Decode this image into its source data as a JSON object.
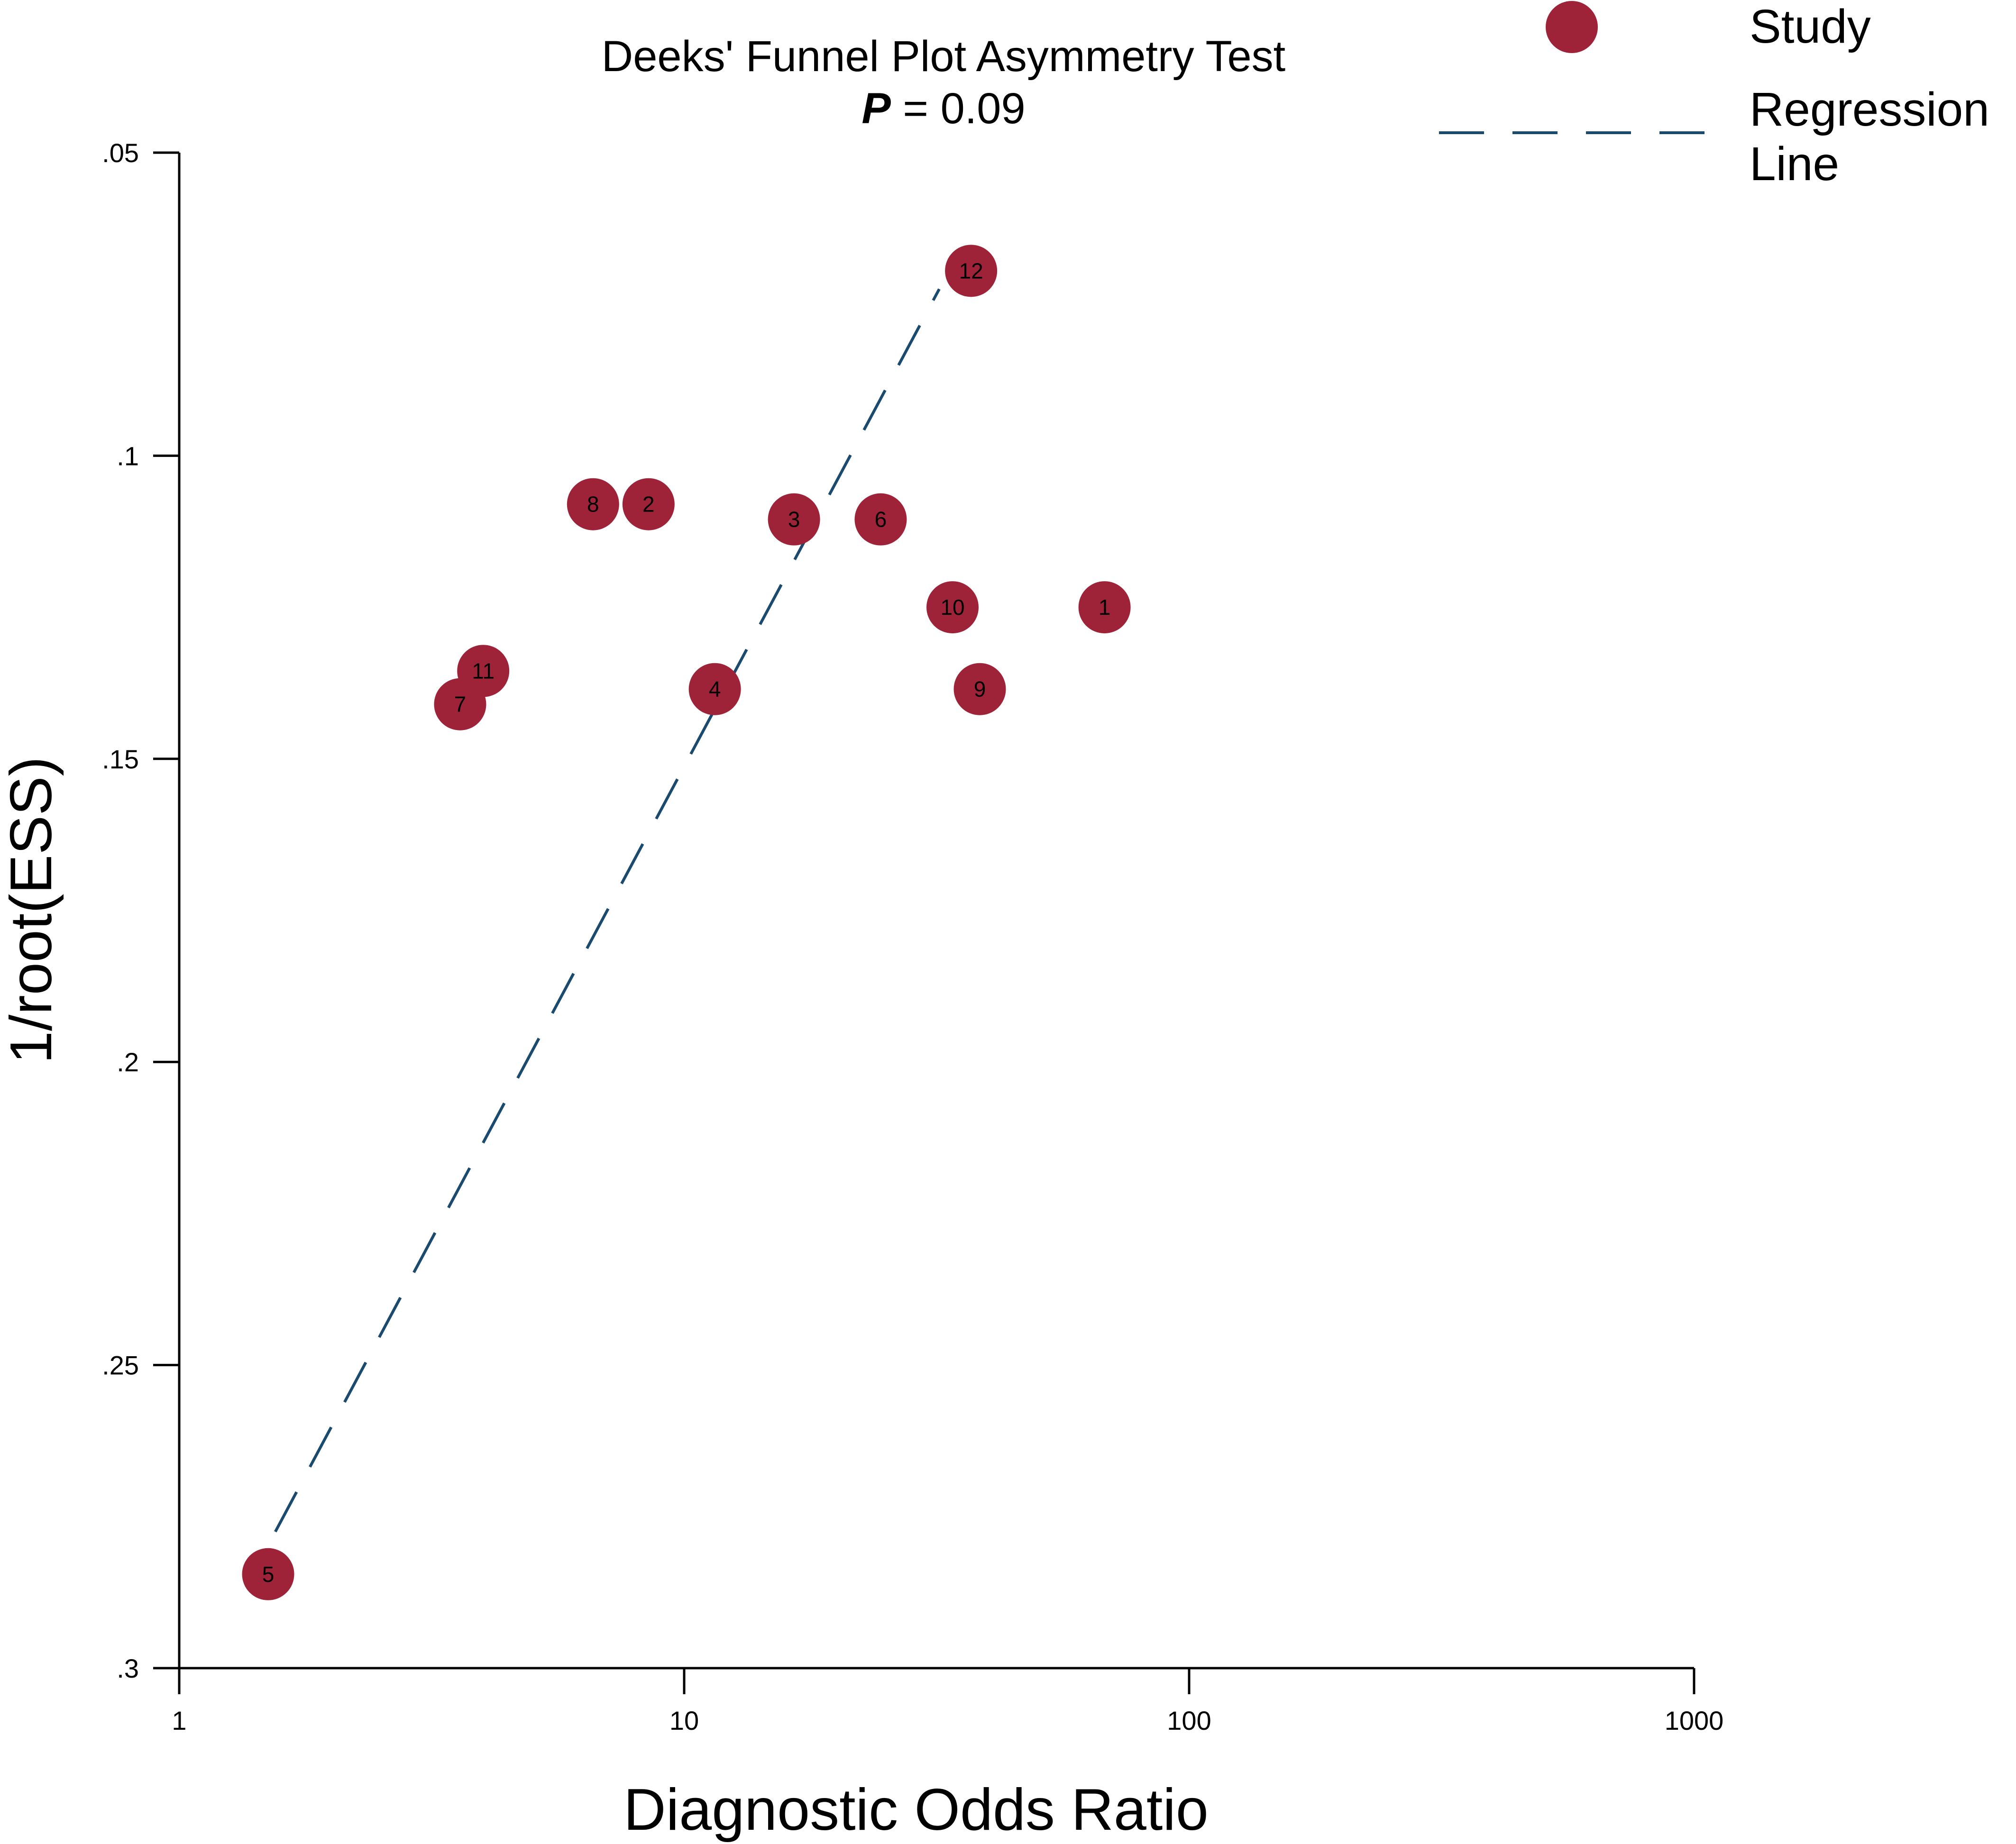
{
  "chart_data": {
    "type": "scatter",
    "title": "Deeks' Funnel Plot Asymmetry Test",
    "subtitle": {
      "p_label": "P",
      "rest": " = 0.09"
    },
    "xlabel": "Diagnostic Odds Ratio",
    "ylabel": "1/root(ESS)",
    "x_scale": "log",
    "xlim": [
      1,
      1000
    ],
    "ylim": [
      0.3,
      0.05
    ],
    "y_inverted": true,
    "x_ticks": [
      1,
      10,
      100,
      1000
    ],
    "x_tick_labels": [
      "1",
      "10",
      "100",
      "1000"
    ],
    "y_ticks": [
      0.05,
      0.1,
      0.15,
      0.2,
      0.25,
      0.3
    ],
    "y_tick_labels": [
      ".05",
      ".1",
      ".15",
      ".2",
      ".25",
      ".3"
    ],
    "grid": false,
    "legend": {
      "placement": "top-right",
      "items": [
        {
          "label": "Study",
          "kind": "marker"
        },
        {
          "label": "Regression\nLine",
          "kind": "dashed-line"
        }
      ]
    },
    "series": [
      {
        "name": "Study",
        "points": [
          {
            "label": "1",
            "x": 68,
            "y": 0.125
          },
          {
            "label": "2",
            "x": 8.5,
            "y": 0.108
          },
          {
            "label": "3",
            "x": 16.5,
            "y": 0.1105
          },
          {
            "label": "4",
            "x": 11.5,
            "y": 0.1385
          },
          {
            "label": "5",
            "x": 1.5,
            "y": 0.2845
          },
          {
            "label": "6",
            "x": 24.5,
            "y": 0.1105
          },
          {
            "label": "7",
            "x": 3.6,
            "y": 0.141
          },
          {
            "label": "8",
            "x": 6.6,
            "y": 0.108
          },
          {
            "label": "9",
            "x": 38.5,
            "y": 0.1385
          },
          {
            "label": "10",
            "x": 34,
            "y": 0.125
          },
          {
            "label": "11",
            "x": 4,
            "y": 0.1355
          },
          {
            "label": "12",
            "x": 37,
            "y": 0.0695
          }
        ]
      },
      {
        "name": "Regression Line",
        "line": [
          {
            "x": 1.55,
            "y": 0.2775
          },
          {
            "x": 32,
            "y": 0.0725
          }
        ]
      }
    ],
    "colors": {
      "marker": "#9e2338",
      "regression": "#1a4a6e",
      "axis": "#000000"
    }
  }
}
